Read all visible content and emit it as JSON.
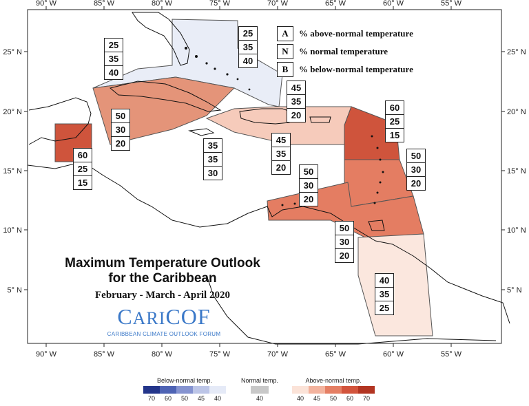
{
  "title": {
    "line1": "Maximum Temperature Outlook",
    "line2": "for the Caribbean",
    "period": "February - March - April 2020"
  },
  "logo": {
    "name_lead": "C",
    "name_rest": "ARI",
    "name_tail": "COF",
    "subtitle": "CARIBBEAN CLIMATE OUTLOOK FORUM"
  },
  "key": [
    {
      "letter": "A",
      "text": "% above-normal temperature"
    },
    {
      "letter": "N",
      "text": "% normal temperature"
    },
    {
      "letter": "B",
      "text": "% below-normal temperature"
    }
  ],
  "axes": {
    "lon_labels": [
      "90° W",
      "85° W",
      "80° W",
      "75° W",
      "70° W",
      "65° W",
      "60° W",
      "55° W"
    ],
    "lat_labels": [
      "25° N",
      "20° N",
      "15° N",
      "10° N",
      "5° N"
    ]
  },
  "regions": [
    {
      "id": "bahamas-cuba-north",
      "above": 25,
      "normal": 35,
      "below": 40,
      "color": "#e9edf7"
    },
    {
      "id": "bahamas-east",
      "above": 25,
      "normal": 35,
      "below": 40,
      "color": "#e9edf7"
    },
    {
      "id": "cuba-cayman",
      "above": 50,
      "normal": 30,
      "below": 20,
      "color": "#e49479"
    },
    {
      "id": "belize",
      "above": 60,
      "normal": 25,
      "below": 15,
      "color": "#cf543c"
    },
    {
      "id": "jamaica",
      "above": 35,
      "normal": 35,
      "below": 30,
      "color": "#ffffff"
    },
    {
      "id": "hispaniola-puerto-rico",
      "above": 45,
      "normal": 35,
      "below": 20,
      "color": "#f6cbbb"
    },
    {
      "id": "caribbean-central",
      "above": 45,
      "normal": 35,
      "below": 20,
      "color": "#f6cbbb"
    },
    {
      "id": "leeward-islands",
      "above": 60,
      "normal": 25,
      "below": 15,
      "color": "#cf543c"
    },
    {
      "id": "windward-islands",
      "above": 50,
      "normal": 30,
      "below": 20,
      "color": "#e47d62"
    },
    {
      "id": "abc-islands",
      "above": 50,
      "normal": 30,
      "below": 20,
      "color": "#e47d62"
    },
    {
      "id": "trinidad-guianas-north",
      "above": 50,
      "normal": 30,
      "below": 20,
      "color": "#e47d62"
    },
    {
      "id": "guianas",
      "above": 40,
      "normal": 35,
      "below": 25,
      "color": "#fbe7de"
    }
  ],
  "legend": {
    "below": {
      "title": "Below-normal temp.",
      "ticks": [
        "70",
        "60",
        "50",
        "45",
        "40"
      ],
      "colors": [
        "#23358a",
        "#4e63b4",
        "#8593d0",
        "#bcc5e7",
        "#e5eaf7"
      ]
    },
    "normal": {
      "title": "Normal temp.",
      "ticks": [
        "40"
      ],
      "colors": [
        "#c8c8c8"
      ]
    },
    "above": {
      "title": "Above-normal temp.",
      "ticks": [
        "40",
        "45",
        "50",
        "60",
        "70"
      ],
      "colors": [
        "#fbe3d8",
        "#f3b39e",
        "#e57f64",
        "#d2543c",
        "#b23522"
      ]
    }
  }
}
